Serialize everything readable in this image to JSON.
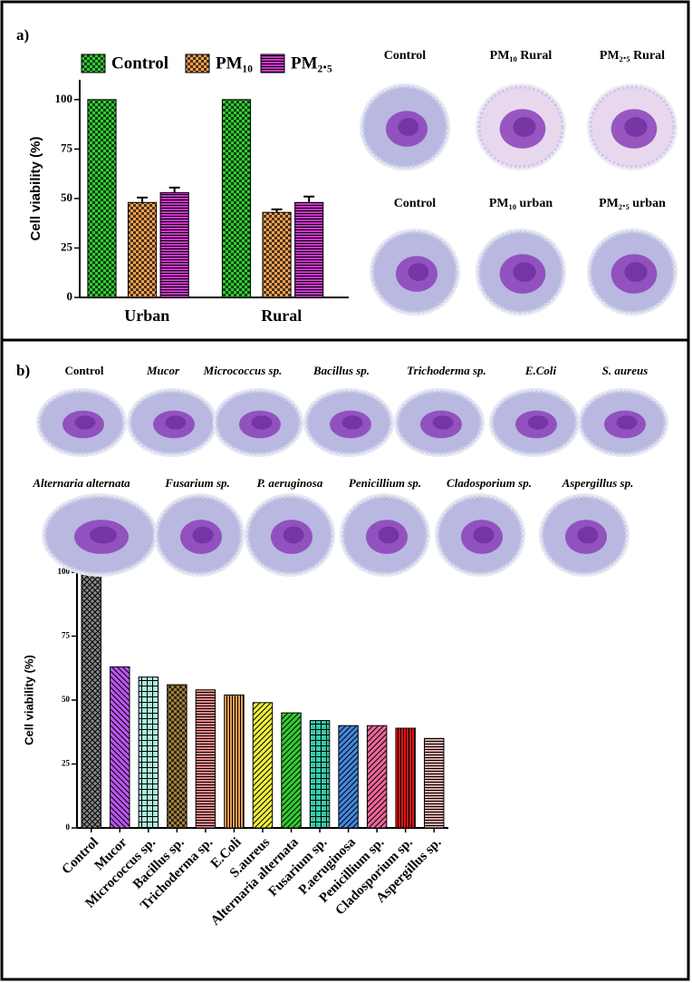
{
  "panel_labels": [
    "a)",
    "b)"
  ],
  "micrographs_a": [
    "Control",
    "PM₁₀ Rural",
    "PM₂.₅ Rural",
    "Control",
    "PM₁₀ urban",
    "PM₂.₅ urban"
  ],
  "micrographs_b": [
    "Control",
    "Mucor",
    "Micrococcus sp.",
    "Bacillus sp.",
    "Trichoderma sp.",
    "E.Coli",
    "S. aureus",
    "Alternaria alternata",
    "Fusarium sp.",
    "P. aeruginosa",
    "Penicillium sp.",
    "Cladosporium sp.",
    "Aspergillus sp."
  ],
  "chart_data": [
    {
      "type": "bar",
      "y_label": "Cell viability (%)",
      "categories": [
        "Urban",
        "Rural"
      ],
      "series": [
        {
          "name": "Control",
          "color": "#33cc33",
          "values": [
            100,
            100
          ]
        },
        {
          "name": "PM₁₀",
          "color": "#f0a050",
          "values": [
            48,
            43
          ],
          "errors": [
            2.5,
            1.5
          ]
        },
        {
          "name": "PM₂.₅",
          "color": "#cc33cc",
          "values": [
            53,
            48
          ],
          "errors": [
            2.5,
            3
          ]
        }
      ],
      "ylim": [
        0,
        110
      ],
      "yticks": [
        0,
        25,
        50,
        75,
        100
      ],
      "legend": "top"
    },
    {
      "type": "bar",
      "y_label": "Cell viability (%)",
      "categories": [
        "Control",
        "Mucor",
        "Micrococcus sp.",
        "Bacillus sp.",
        "Trichoderma sp.",
        "E.Coli",
        "S.aureus",
        "Alternaria alternata",
        "Fusarium sp.",
        "P.aeruginosa",
        "Penicillium sp.",
        "Cladosporium sp.",
        "Aspergillus sp."
      ],
      "values": [
        100,
        63,
        59,
        56,
        54,
        52,
        49,
        45,
        42,
        40,
        40,
        39,
        35
      ],
      "colors": [
        "#888888",
        "#bb55ee",
        "#aaeedd",
        "#a08040",
        "#ee8888",
        "#f0a050",
        "#f0f040",
        "#33cc33",
        "#33ccaa",
        "#4488dd",
        "#ee6699",
        "#ee1111",
        "#ddaaaa"
      ],
      "ylim": [
        0,
        100
      ],
      "yticks": [
        0,
        25,
        50,
        75,
        100
      ]
    }
  ]
}
